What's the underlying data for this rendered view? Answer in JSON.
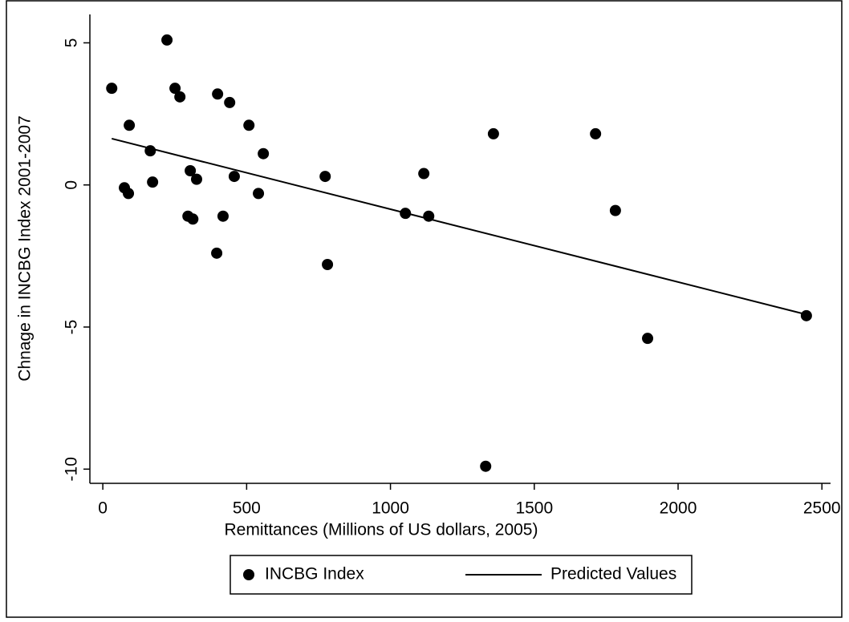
{
  "chart_data": {
    "type": "scatter",
    "x_label": "Remittances (Millions of US dollars, 2005)",
    "y_label": "Chnage in INCBG Index 2001-2007",
    "xlim": [
      -45,
      2530
    ],
    "ylim": [
      -10.5,
      6
    ],
    "xticks": [
      0,
      500,
      1000,
      1500,
      2000,
      2500
    ],
    "yticks": [
      -10,
      -5,
      0,
      5
    ],
    "series": [
      {
        "name": "INCBG Index",
        "type": "scatter",
        "color": "#000000",
        "x": [
          31,
          223,
          251,
          268,
          399,
          441,
          92,
          508,
          75,
          89,
          165,
          173,
          304,
          326,
          296,
          313,
          418,
          396,
          457,
          558,
          541,
          773,
          781,
          1052,
          1116,
          1133,
          1358,
          1331,
          1713,
          1782,
          1894,
          2446
        ],
        "values": [
          3.4,
          5.1,
          3.4,
          3.1,
          3.2,
          2.9,
          2.1,
          2.1,
          -0.1,
          -0.3,
          1.2,
          0.1,
          0.5,
          0.2,
          -1.1,
          -1.2,
          -1.1,
          -2.4,
          0.3,
          1.1,
          -0.3,
          0.3,
          -2.8,
          -1.0,
          0.4,
          -1.1,
          1.8,
          -9.9,
          1.8,
          -0.9,
          -5.4,
          -4.6
        ]
      },
      {
        "name": "Predicted Values",
        "type": "line",
        "color": "#000000",
        "x": [
          31,
          2446
        ],
        "values": [
          1.63,
          -4.56
        ]
      }
    ]
  }
}
